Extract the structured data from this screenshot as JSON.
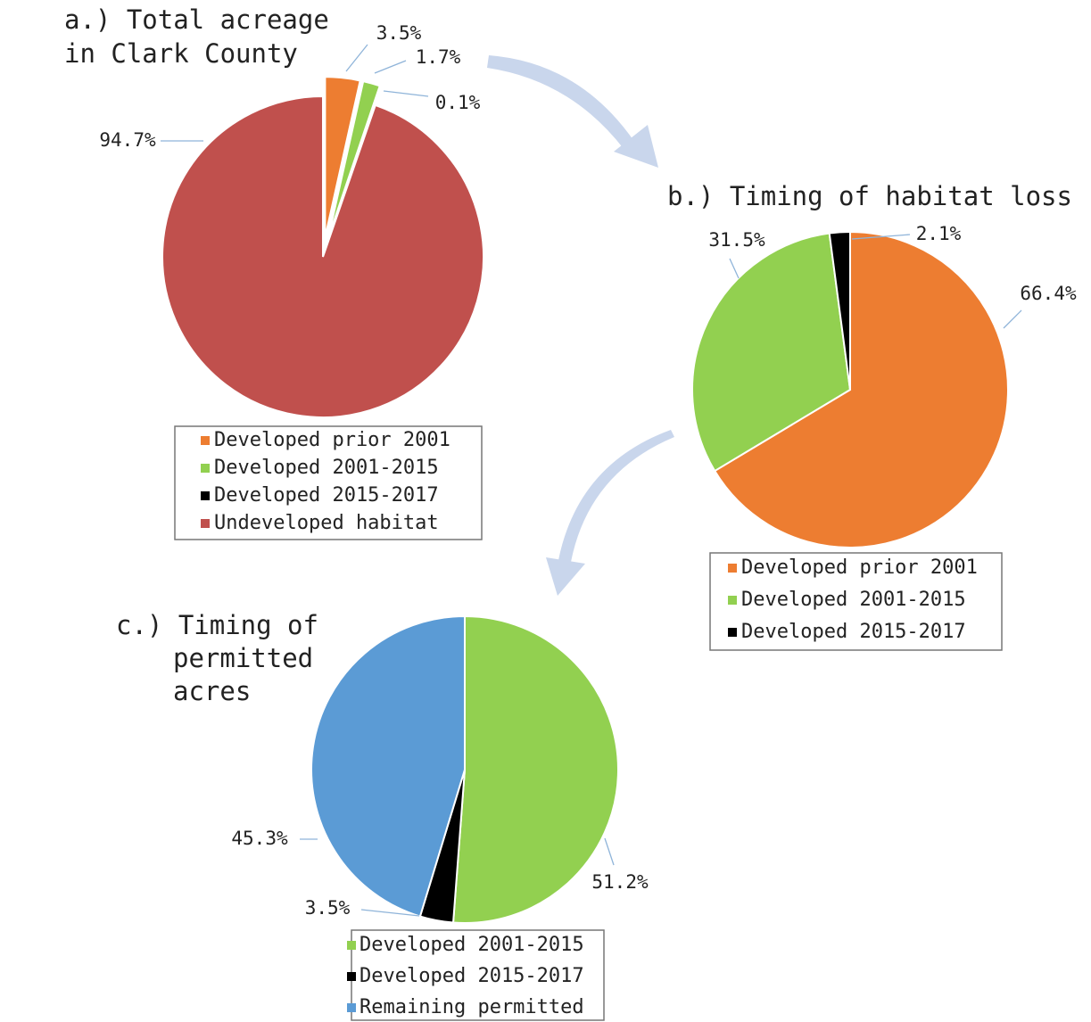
{
  "chart_data": [
    {
      "type": "pie",
      "title": [
        "a.) Total acreage",
        "in Clark County"
      ],
      "categories": [
        "Developed prior 2001",
        "Developed 2001-2015",
        "Developed 2015-2017",
        "Undeveloped habitat"
      ],
      "values": [
        3.5,
        1.7,
        0.1,
        94.7
      ],
      "value_labels": [
        "3.5%",
        "1.7%",
        "0.1%",
        "94.7%"
      ],
      "colors": [
        "#ed7d31",
        "#92d050",
        "#000000",
        "#c0504d"
      ]
    },
    {
      "type": "pie",
      "title": [
        "b.) Timing of habitat loss"
      ],
      "categories": [
        "Developed prior 2001",
        "Developed 2001-2015",
        "Developed 2015-2017"
      ],
      "values": [
        66.4,
        31.5,
        2.1
      ],
      "value_labels": [
        "66.4%",
        "31.5%",
        "2.1%"
      ],
      "colors": [
        "#ed7d31",
        "#92d050",
        "#000000"
      ]
    },
    {
      "type": "pie",
      "title": [
        "c.) Timing of",
        "permitted",
        "acres"
      ],
      "categories": [
        "Developed 2001-2015",
        "Developed 2015-2017",
        "Remaining permitted"
      ],
      "values": [
        51.2,
        3.5,
        45.3
      ],
      "value_labels": [
        "51.2%",
        "3.5%",
        "45.3%"
      ],
      "colors": [
        "#92d050",
        "#000000",
        "#5b9bd5"
      ]
    }
  ]
}
